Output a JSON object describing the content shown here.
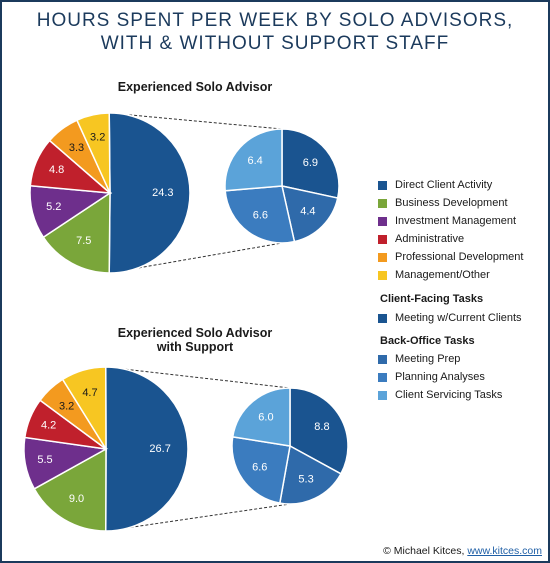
{
  "title_line1": "HOURS SPENT PER WEEK BY SOLO ADVISORS,",
  "title_line2": "WITH & WITHOUT SUPPORT STAFF",
  "colors": {
    "direct": "#1a5490",
    "business": "#7aa63a",
    "investment": "#6e2f8c",
    "administrative": "#c0202c",
    "professional": "#f39a1f",
    "management": "#f7c622",
    "meeting": "#1a5490",
    "planning": "#3b7cbf",
    "servicing": "#5ba3d9",
    "frame": "#1b3a5c"
  },
  "legend": {
    "main": [
      {
        "label": "Direct Client Activity",
        "color": "#1a5490"
      },
      {
        "label": "Business Development",
        "color": "#7aa63a"
      },
      {
        "label": "Investment Management",
        "color": "#6e2f8c"
      },
      {
        "label": "Administrative",
        "color": "#c0202c"
      },
      {
        "label": "Professional Development",
        "color": "#f39a1f"
      },
      {
        "label": "Management/Other",
        "color": "#f7c622"
      }
    ],
    "client_facing_heading": "Client-Facing Tasks",
    "client_facing": [
      {
        "label": "Meeting w/Current Clients",
        "color": "#1a5490"
      }
    ],
    "back_office_heading": "Back-Office Tasks",
    "back_office": [
      {
        "label": "Meeting Prep",
        "color": "#2f6aaa"
      },
      {
        "label": "Planning Analyses",
        "color": "#3b7cbf"
      },
      {
        "label": "Client Servicing Tasks",
        "color": "#5ba3d9"
      }
    ]
  },
  "credit_text": "© Michael Kitces, ",
  "credit_link": "www.kitces.com",
  "chart_data": [
    {
      "type": "pie",
      "title": "Experienced Solo Advisor",
      "categories": [
        "Direct Client Activity",
        "Business Development",
        "Investment Management",
        "Administrative",
        "Professional Development",
        "Management/Other"
      ],
      "values": [
        24.3,
        7.5,
        5.2,
        4.8,
        3.3,
        3.2
      ],
      "breakout": {
        "of": "Direct Client Activity",
        "categories": [
          "Meeting w/Current Clients",
          "Meeting Prep",
          "Planning Analyses",
          "Client Servicing Tasks"
        ],
        "values": [
          6.9,
          4.4,
          6.6,
          6.4
        ]
      }
    },
    {
      "type": "pie",
      "title_line1": "Experienced Solo Advisor",
      "title_line2": "with Support",
      "categories": [
        "Direct Client Activity",
        "Business Development",
        "Investment Management",
        "Administrative",
        "Professional Development",
        "Management/Other"
      ],
      "values": [
        26.7,
        9.0,
        5.5,
        4.2,
        3.2,
        4.7
      ],
      "breakout": {
        "of": "Direct Client Activity",
        "categories": [
          "Meeting w/Current Clients",
          "Meeting Prep",
          "Planning Analyses",
          "Client Servicing Tasks"
        ],
        "values": [
          8.8,
          5.3,
          6.6,
          6.0
        ]
      }
    }
  ]
}
